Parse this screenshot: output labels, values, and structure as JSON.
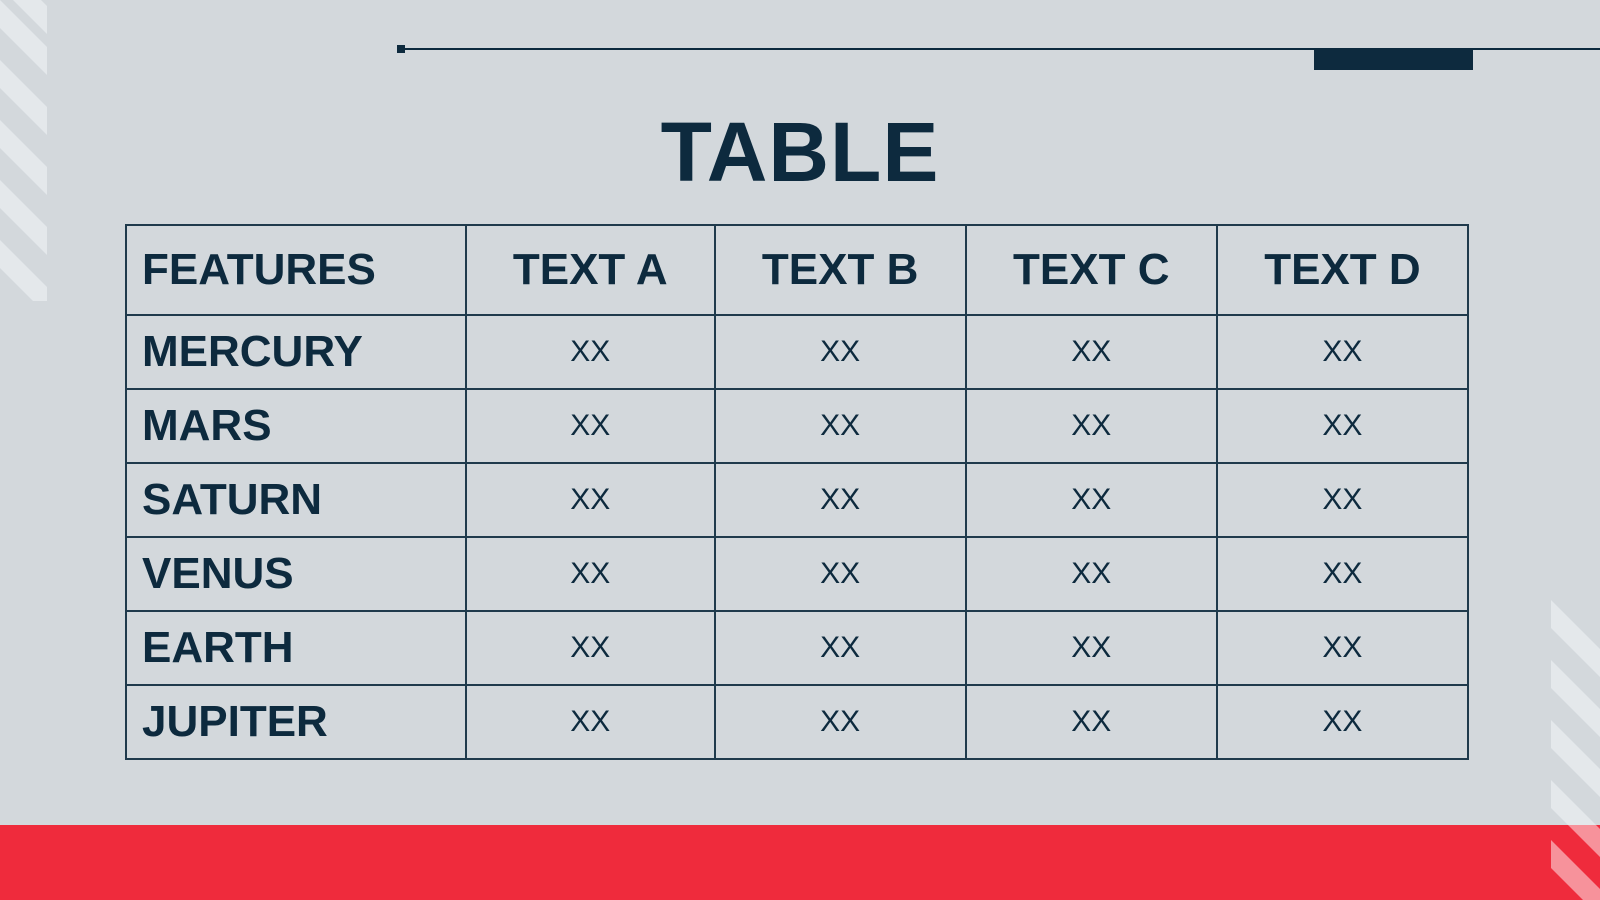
{
  "title": "TABLE",
  "table": {
    "headers": [
      "FEATURES",
      "TEXT A",
      "TEXT B",
      "TEXT C",
      "TEXT D"
    ],
    "rows": [
      {
        "label": "MERCURY",
        "cells": [
          "XX",
          "XX",
          "XX",
          "XX"
        ]
      },
      {
        "label": "MARS",
        "cells": [
          "XX",
          "XX",
          "XX",
          "XX"
        ]
      },
      {
        "label": "SATURN",
        "cells": [
          "XX",
          "XX",
          "XX",
          "XX"
        ]
      },
      {
        "label": "VENUS",
        "cells": [
          "XX",
          "XX",
          "XX",
          "XX"
        ]
      },
      {
        "label": "EARTH",
        "cells": [
          "XX",
          "XX",
          "XX",
          "XX"
        ]
      },
      {
        "label": "JUPITER",
        "cells": [
          "XX",
          "XX",
          "XX",
          "XX"
        ]
      }
    ]
  },
  "colors": {
    "background": "#d3d8dc",
    "dark": "#0d2a3e",
    "accent": "#ef2b3c"
  }
}
